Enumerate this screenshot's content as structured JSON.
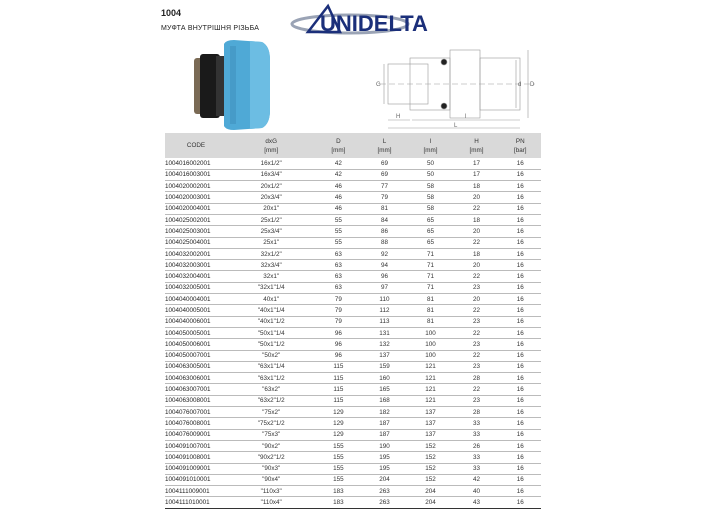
{
  "header": {
    "code": "1004",
    "title": "МУФТА ВНУТРІШНЯ РІЗЬБА",
    "brand": "UNIDELTA",
    "brand_color": "#1b2f7a",
    "product_color": "#4fa9d6"
  },
  "drawing_labels": {
    "G": "G",
    "d": "d",
    "D": "D",
    "H": "H",
    "l": "l",
    "L": "L"
  },
  "table": {
    "columns": [
      {
        "name": "CODE",
        "unit": ""
      },
      {
        "name": "dxG",
        "unit": "[mm]"
      },
      {
        "name": "D",
        "unit": "[mm]"
      },
      {
        "name": "L",
        "unit": "[mm]"
      },
      {
        "name": "l",
        "unit": "[mm]"
      },
      {
        "name": "H",
        "unit": "[mm]"
      },
      {
        "name": "PN",
        "unit": "[bar]"
      }
    ],
    "rows": [
      [
        "1004016002001",
        "16x1/2\"",
        "42",
        "69",
        "50",
        "17",
        "16"
      ],
      [
        "1004016003001",
        "16x3/4\"",
        "42",
        "69",
        "50",
        "17",
        "16"
      ],
      [
        "1004020002001",
        "20x1/2\"",
        "46",
        "77",
        "58",
        "18",
        "16"
      ],
      [
        "1004020003001",
        "20x3/4\"",
        "46",
        "79",
        "58",
        "20",
        "16"
      ],
      [
        "1004020004001",
        "20x1\"",
        "46",
        "81",
        "58",
        "22",
        "16"
      ],
      [
        "1004025002001",
        "25x1/2\"",
        "55",
        "84",
        "65",
        "18",
        "16"
      ],
      [
        "1004025003001",
        "25x3/4\"",
        "55",
        "86",
        "65",
        "20",
        "16"
      ],
      [
        "1004025004001",
        "25x1\"",
        "55",
        "88",
        "65",
        "22",
        "16"
      ],
      [
        "1004032002001",
        "32x1/2\"",
        "63",
        "92",
        "71",
        "18",
        "16"
      ],
      [
        "1004032003001",
        "32x3/4\"",
        "63",
        "94",
        "71",
        "20",
        "16"
      ],
      [
        "1004032004001",
        "32x1\"",
        "63",
        "96",
        "71",
        "22",
        "16"
      ],
      [
        "1004032005001",
        "\"32x1\"1/4",
        "63",
        "97",
        "71",
        "23",
        "16"
      ],
      [
        "1004040004001",
        "40x1\"",
        "79",
        "110",
        "81",
        "20",
        "16"
      ],
      [
        "1004040005001",
        "\"40x1\"1/4",
        "79",
        "112",
        "81",
        "22",
        "16"
      ],
      [
        "1004040006001",
        "\"40x1\"1/2",
        "79",
        "113",
        "81",
        "23",
        "16"
      ],
      [
        "1004050005001",
        "\"50x1\"1/4",
        "96",
        "131",
        "100",
        "22",
        "16"
      ],
      [
        "1004050006001",
        "\"50x1\"1/2",
        "96",
        "132",
        "100",
        "23",
        "16"
      ],
      [
        "1004050007001",
        "\"50x2\"",
        "96",
        "137",
        "100",
        "22",
        "16"
      ],
      [
        "1004063005001",
        "\"63x1\"1/4",
        "115",
        "159",
        "121",
        "23",
        "16"
      ],
      [
        "1004063006001",
        "\"63x1\"1/2",
        "115",
        "160",
        "121",
        "28",
        "16"
      ],
      [
        "1004063007001",
        "\"63x2\"",
        "115",
        "165",
        "121",
        "22",
        "16"
      ],
      [
        "1004063008001",
        "\"63x2\"1/2",
        "115",
        "168",
        "121",
        "23",
        "16"
      ],
      [
        "1004076007001",
        "\"75x2\"",
        "129",
        "182",
        "137",
        "28",
        "16"
      ],
      [
        "1004076008001",
        "\"75x2\"1/2",
        "129",
        "187",
        "137",
        "33",
        "16"
      ],
      [
        "1004076009001",
        "\"75x3\"",
        "129",
        "187",
        "137",
        "33",
        "16"
      ],
      [
        "1004091007001",
        "\"90x2\"",
        "155",
        "190",
        "152",
        "26",
        "16"
      ],
      [
        "1004091008001",
        "\"90x2\"1/2",
        "155",
        "195",
        "152",
        "33",
        "16"
      ],
      [
        "1004091009001",
        "\"90x3\"",
        "155",
        "195",
        "152",
        "33",
        "16"
      ],
      [
        "1004091010001",
        "\"90x4\"",
        "155",
        "204",
        "152",
        "42",
        "16"
      ],
      [
        "1004111009001",
        "\"110x3\"",
        "183",
        "263",
        "204",
        "40",
        "16"
      ],
      [
        "1004111010001",
        "\"110x4\"",
        "183",
        "263",
        "204",
        "43",
        "16"
      ]
    ]
  }
}
